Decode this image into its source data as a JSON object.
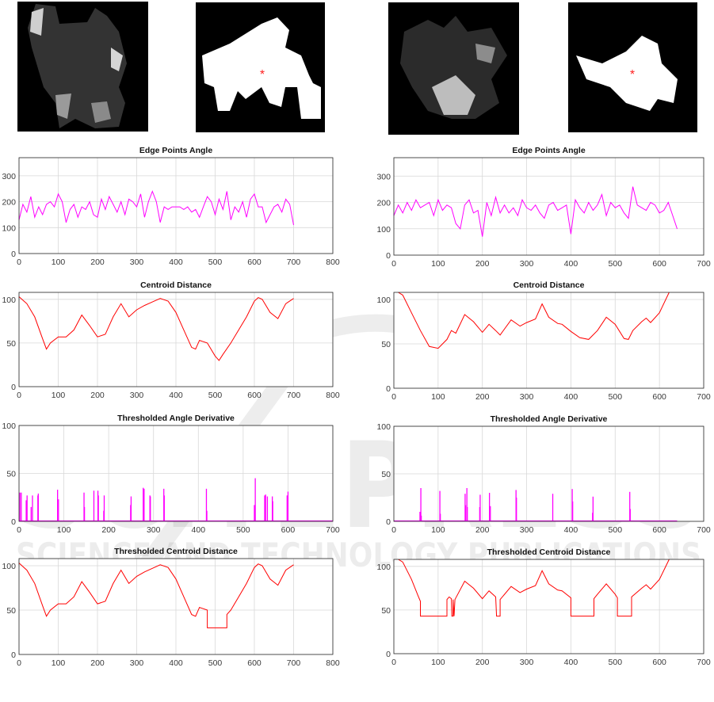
{
  "watermark": {
    "main": "SCITEPRESS",
    "sub": "SCIENCE AND TECHNOLOGY PUBLICATIONS"
  },
  "images": [
    {
      "label": "lesion-1-grayscale"
    },
    {
      "label": "lesion-1-mask",
      "marker_color": "#ff2020"
    },
    {
      "label": "lesion-2-grayscale"
    },
    {
      "label": "lesion-2-mask",
      "marker_color": "#ff2020"
    }
  ],
  "chart_data": [
    {
      "type": "line",
      "title": "Edge Points Angle",
      "color": "#ff00ff",
      "xlim": [
        0,
        800
      ],
      "ylim": [
        0,
        370
      ],
      "xticks": [
        0,
        100,
        200,
        300,
        400,
        500,
        600,
        700,
        800
      ],
      "yticks": [
        0,
        100,
        200,
        300
      ],
      "grid": true,
      "mode": "series",
      "x0": 0,
      "dx": 10,
      "values": [
        130,
        190,
        160,
        220,
        140,
        180,
        150,
        190,
        200,
        180,
        230,
        200,
        120,
        170,
        190,
        140,
        180,
        170,
        200,
        150,
        140,
        210,
        170,
        220,
        190,
        160,
        200,
        150,
        210,
        200,
        180,
        230,
        140,
        200,
        240,
        200,
        120,
        180,
        170,
        180,
        180,
        180,
        170,
        180,
        160,
        170,
        140,
        180,
        220,
        200,
        150,
        210,
        170,
        240,
        130,
        180,
        160,
        200,
        140,
        210,
        230,
        180,
        180,
        120,
        150,
        180,
        190,
        160,
        210,
        190,
        110
      ]
    },
    {
      "type": "line",
      "title": "Edge Points Angle",
      "color": "#ff00ff",
      "xlim": [
        0,
        700
      ],
      "ylim": [
        0,
        370
      ],
      "xticks": [
        0,
        100,
        200,
        300,
        400,
        500,
        600,
        700
      ],
      "yticks": [
        0,
        100,
        200,
        300
      ],
      "grid": true,
      "mode": "series",
      "x0": 0,
      "dx": 10,
      "values": [
        150,
        190,
        160,
        200,
        170,
        210,
        180,
        190,
        200,
        150,
        210,
        170,
        190,
        180,
        120,
        100,
        190,
        210,
        160,
        170,
        70,
        200,
        150,
        220,
        160,
        190,
        160,
        180,
        150,
        210,
        180,
        170,
        190,
        160,
        140,
        190,
        200,
        170,
        180,
        190,
        80,
        210,
        180,
        160,
        200,
        170,
        190,
        230,
        150,
        200,
        180,
        190,
        160,
        140,
        260,
        190,
        180,
        170,
        200,
        190,
        160,
        170,
        200,
        150,
        100
      ]
    },
    {
      "type": "line",
      "title": "Centroid Distance",
      "color": "#ff0000",
      "xlim": [
        0,
        800
      ],
      "ylim": [
        0,
        108
      ],
      "xticks": [
        0,
        100,
        200,
        300,
        400,
        500,
        600,
        700,
        800
      ],
      "yticks": [
        0,
        50,
        100
      ],
      "grid": true,
      "mode": "xy",
      "points": [
        [
          0,
          103
        ],
        [
          20,
          95
        ],
        [
          40,
          80
        ],
        [
          60,
          55
        ],
        [
          70,
          43
        ],
        [
          80,
          50
        ],
        [
          100,
          57
        ],
        [
          120,
          57
        ],
        [
          140,
          65
        ],
        [
          160,
          82
        ],
        [
          180,
          70
        ],
        [
          200,
          57
        ],
        [
          220,
          60
        ],
        [
          240,
          80
        ],
        [
          260,
          95
        ],
        [
          280,
          80
        ],
        [
          300,
          88
        ],
        [
          320,
          93
        ],
        [
          340,
          97
        ],
        [
          360,
          101
        ],
        [
          380,
          98
        ],
        [
          400,
          85
        ],
        [
          420,
          65
        ],
        [
          440,
          45
        ],
        [
          450,
          43
        ],
        [
          460,
          53
        ],
        [
          480,
          50
        ],
        [
          500,
          35
        ],
        [
          510,
          30
        ],
        [
          520,
          37
        ],
        [
          540,
          50
        ],
        [
          560,
          65
        ],
        [
          580,
          80
        ],
        [
          600,
          98
        ],
        [
          610,
          102
        ],
        [
          620,
          100
        ],
        [
          640,
          85
        ],
        [
          660,
          78
        ],
        [
          680,
          95
        ],
        [
          700,
          101
        ]
      ]
    },
    {
      "type": "line",
      "title": "Centroid Distance",
      "color": "#ff0000",
      "xlim": [
        0,
        700
      ],
      "ylim": [
        0,
        108
      ],
      "xticks": [
        0,
        100,
        200,
        300,
        400,
        500,
        600,
        700
      ],
      "yticks": [
        0,
        50,
        100
      ],
      "grid": true,
      "mode": "xy",
      "points": [
        [
          10,
          108
        ],
        [
          20,
          105
        ],
        [
          40,
          85
        ],
        [
          60,
          65
        ],
        [
          80,
          47
        ],
        [
          100,
          45
        ],
        [
          120,
          55
        ],
        [
          130,
          65
        ],
        [
          140,
          62
        ],
        [
          160,
          83
        ],
        [
          180,
          75
        ],
        [
          200,
          63
        ],
        [
          215,
          72
        ],
        [
          230,
          65
        ],
        [
          240,
          60
        ],
        [
          265,
          77
        ],
        [
          285,
          70
        ],
        [
          300,
          74
        ],
        [
          320,
          78
        ],
        [
          335,
          95
        ],
        [
          350,
          80
        ],
        [
          370,
          73
        ],
        [
          380,
          72
        ],
        [
          400,
          64
        ],
        [
          420,
          57
        ],
        [
          440,
          55
        ],
        [
          460,
          65
        ],
        [
          480,
          80
        ],
        [
          500,
          72
        ],
        [
          520,
          56
        ],
        [
          530,
          55
        ],
        [
          540,
          65
        ],
        [
          560,
          75
        ],
        [
          570,
          79
        ],
        [
          580,
          74
        ],
        [
          600,
          85
        ],
        [
          622,
          108
        ]
      ]
    },
    {
      "type": "bar",
      "title": "Thresholded Angle Derivative",
      "color": "#ff00ff",
      "xlim": [
        0,
        700
      ],
      "ylim": [
        0,
        100
      ],
      "xticks": [
        0,
        100,
        200,
        300,
        400,
        500,
        600,
        700
      ],
      "yticks": [
        0,
        50,
        100
      ],
      "grid": true,
      "mode": "spikes",
      "baseline_end": 700,
      "points": [
        [
          2,
          30
        ],
        [
          5,
          30
        ],
        [
          16,
          22
        ],
        [
          18,
          27
        ],
        [
          27,
          15
        ],
        [
          30,
          27
        ],
        [
          42,
          27
        ],
        [
          43,
          29
        ],
        [
          86,
          33
        ],
        [
          88,
          23
        ],
        [
          145,
          30
        ],
        [
          146,
          15
        ],
        [
          167,
          32
        ],
        [
          176,
          32
        ],
        [
          177,
          27
        ],
        [
          189,
          11
        ],
        [
          190,
          27
        ],
        [
          249,
          17
        ],
        [
          250,
          26
        ],
        [
          277,
          35
        ],
        [
          279,
          34
        ],
        [
          292,
          27
        ],
        [
          293,
          26
        ],
        [
          323,
          34
        ],
        [
          324,
          27
        ],
        [
          418,
          34
        ],
        [
          419,
          11
        ],
        [
          525,
          17
        ],
        [
          527,
          45
        ],
        [
          548,
          27
        ],
        [
          550,
          28
        ],
        [
          554,
          26
        ],
        [
          565,
          26
        ],
        [
          566,
          21
        ],
        [
          598,
          27
        ],
        [
          600,
          31
        ]
      ]
    },
    {
      "type": "bar",
      "title": "Thresholded Angle Derivative",
      "color": "#ff00ff",
      "xlim": [
        0,
        700
      ],
      "ylim": [
        0,
        100
      ],
      "xticks": [
        0,
        100,
        200,
        300,
        400,
        500,
        600,
        700
      ],
      "yticks": [
        0,
        50,
        100
      ],
      "grid": true,
      "mode": "spikes",
      "baseline_end": 640,
      "points": [
        [
          59,
          10
        ],
        [
          61,
          35
        ],
        [
          62,
          6
        ],
        [
          104,
          32
        ],
        [
          105,
          8
        ],
        [
          161,
          29
        ],
        [
          162,
          17
        ],
        [
          165,
          35
        ],
        [
          166,
          15
        ],
        [
          194,
          15
        ],
        [
          195,
          28
        ],
        [
          216,
          30
        ],
        [
          218,
          16
        ],
        [
          276,
          33
        ],
        [
          277,
          25
        ],
        [
          359,
          29
        ],
        [
          403,
          34
        ],
        [
          404,
          21
        ],
        [
          449,
          9
        ],
        [
          450,
          26
        ],
        [
          533,
          31
        ],
        [
          534,
          13
        ]
      ]
    },
    {
      "type": "line",
      "title": "Thresholded Centroid Distance",
      "color": "#ff0000",
      "xlim": [
        0,
        800
      ],
      "ylim": [
        0,
        108
      ],
      "xticks": [
        0,
        100,
        200,
        300,
        400,
        500,
        600,
        700,
        800
      ],
      "yticks": [
        0,
        50,
        100
      ],
      "grid": true,
      "mode": "xy",
      "points": [
        [
          0,
          103
        ],
        [
          20,
          95
        ],
        [
          40,
          80
        ],
        [
          60,
          55
        ],
        [
          70,
          43
        ],
        [
          80,
          50
        ],
        [
          100,
          57
        ],
        [
          120,
          57
        ],
        [
          140,
          65
        ],
        [
          160,
          82
        ],
        [
          180,
          70
        ],
        [
          200,
          57
        ],
        [
          220,
          60
        ],
        [
          240,
          80
        ],
        [
          260,
          95
        ],
        [
          280,
          80
        ],
        [
          300,
          88
        ],
        [
          320,
          93
        ],
        [
          340,
          97
        ],
        [
          360,
          101
        ],
        [
          380,
          98
        ],
        [
          400,
          85
        ],
        [
          420,
          65
        ],
        [
          440,
          45
        ],
        [
          450,
          43
        ],
        [
          460,
          53
        ],
        [
          480,
          50
        ],
        [
          480,
          30
        ],
        [
          530,
          30
        ],
        [
          530,
          45
        ],
        [
          540,
          50
        ],
        [
          560,
          65
        ],
        [
          580,
          80
        ],
        [
          600,
          98
        ],
        [
          610,
          102
        ],
        [
          620,
          100
        ],
        [
          640,
          85
        ],
        [
          660,
          78
        ],
        [
          680,
          95
        ],
        [
          700,
          101
        ]
      ]
    },
    {
      "type": "line",
      "title": "Thresholded Centroid Distance",
      "color": "#ff0000",
      "xlim": [
        0,
        700
      ],
      "ylim": [
        0,
        108
      ],
      "xticks": [
        0,
        100,
        200,
        300,
        400,
        500,
        600,
        700
      ],
      "yticks": [
        0,
        50,
        100
      ],
      "grid": true,
      "mode": "xy",
      "points": [
        [
          10,
          108
        ],
        [
          20,
          105
        ],
        [
          40,
          85
        ],
        [
          55,
          66
        ],
        [
          60,
          60
        ],
        [
          60,
          43
        ],
        [
          120,
          43
        ],
        [
          120,
          62
        ],
        [
          125,
          65
        ],
        [
          130,
          63
        ],
        [
          131,
          43
        ],
        [
          134,
          43
        ],
        [
          134,
          62
        ],
        [
          136,
          43
        ],
        [
          138,
          62
        ],
        [
          160,
          83
        ],
        [
          180,
          75
        ],
        [
          200,
          63
        ],
        [
          215,
          72
        ],
        [
          230,
          65
        ],
        [
          232,
          43
        ],
        [
          240,
          43
        ],
        [
          240,
          62
        ],
        [
          265,
          77
        ],
        [
          285,
          70
        ],
        [
          300,
          74
        ],
        [
          320,
          78
        ],
        [
          335,
          95
        ],
        [
          350,
          80
        ],
        [
          370,
          73
        ],
        [
          380,
          72
        ],
        [
          400,
          64
        ],
        [
          400,
          43
        ],
        [
          452,
          43
        ],
        [
          452,
          63
        ],
        [
          460,
          68
        ],
        [
          480,
          80
        ],
        [
          500,
          68
        ],
        [
          505,
          64
        ],
        [
          505,
          43
        ],
        [
          537,
          43
        ],
        [
          537,
          65
        ],
        [
          560,
          75
        ],
        [
          570,
          79
        ],
        [
          580,
          74
        ],
        [
          600,
          85
        ],
        [
          622,
          108
        ]
      ]
    }
  ]
}
